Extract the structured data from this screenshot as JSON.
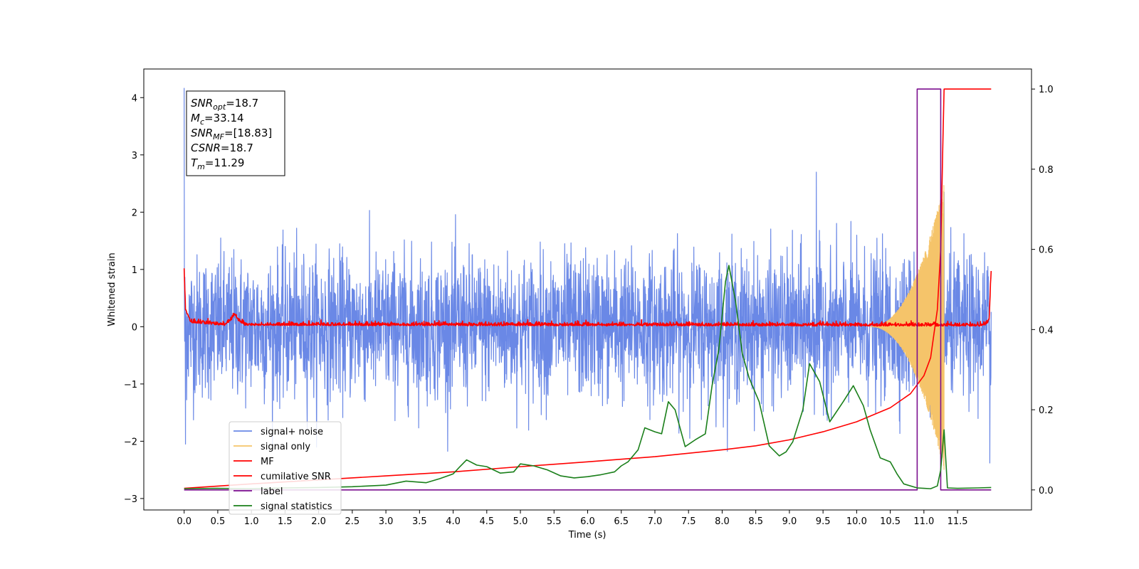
{
  "chart_data": {
    "type": "line",
    "xlabel": "Time (s)",
    "ylabel": "Whitened strain",
    "xlim": [
      -0.6,
      12.6
    ],
    "ylim": [
      -3.2,
      4.5
    ],
    "y2lim": [
      -0.05,
      1.05
    ],
    "x_ticks": [
      0.0,
      0.5,
      1.0,
      1.5,
      2.0,
      2.5,
      3.0,
      3.5,
      4.0,
      4.5,
      5.0,
      5.5,
      6.0,
      6.5,
      7.0,
      7.5,
      8.0,
      8.5,
      9.0,
      9.5,
      10.0,
      10.5,
      11.0,
      11.5
    ],
    "x_tick_labels": [
      "0.0",
      "0.5",
      "1.0",
      "1.5",
      "2.0",
      "2.5",
      "3.0",
      "3.5",
      "4.0",
      "4.5",
      "5.0",
      "5.5",
      "6.0",
      "6.5",
      "7.0",
      "7.5",
      "8.0",
      "8.5",
      "9.0",
      "9.5",
      "10.0",
      "10.5",
      "11.0",
      "11.5"
    ],
    "y_ticks": [
      -3,
      -2,
      -1,
      0,
      1,
      2,
      3,
      4
    ],
    "y_tick_labels": [
      "−3",
      "−2",
      "−1",
      "0",
      "1",
      "2",
      "3",
      "4"
    ],
    "y2_ticks": [
      0.0,
      0.2,
      0.4,
      0.6,
      0.8,
      1.0
    ],
    "y2_tick_labels": [
      "0.0",
      "0.2",
      "0.4",
      "0.6",
      "0.8",
      "1.0"
    ],
    "legend_position": "lower-left",
    "grid": false,
    "series": [
      {
        "name": "signal+ noise",
        "axis": "left",
        "color": "#6a88e6",
        "kind": "noise",
        "x_range": [
          0.0,
          12.0
        ],
        "envelope": 1.5,
        "peak_extremes": [
          {
            "x": 0.0,
            "y": 4.17
          },
          {
            "x": 9.4,
            "y": 2.7
          },
          {
            "x": 11.3,
            "y": 2.35
          },
          {
            "x": 0.02,
            "y": -2.05
          },
          {
            "x": 11.98,
            "y": -2.38
          }
        ]
      },
      {
        "name": "signal only",
        "axis": "left",
        "color": "#f5c46a",
        "kind": "chirp",
        "x_range": [
          10.2,
          11.3
        ],
        "peak_amplitude": 2.5
      },
      {
        "name": "MF",
        "axis": "left",
        "color": "#ff0000",
        "kind": "mf",
        "points": [
          [
            0.0,
            1.0
          ],
          [
            0.02,
            0.3
          ],
          [
            0.1,
            0.08
          ],
          [
            0.6,
            0.03
          ],
          [
            0.7,
            0.12
          ],
          [
            0.75,
            0.22
          ],
          [
            0.8,
            0.12
          ],
          [
            0.9,
            0.03
          ],
          [
            11.9,
            0.02
          ],
          [
            11.97,
            0.1
          ],
          [
            12.0,
            0.97
          ]
        ]
      },
      {
        "name": "cumilative SNR",
        "axis": "right",
        "color": "#ff0000",
        "kind": "cumulative",
        "points": [
          [
            0.0,
            0.004
          ],
          [
            1.0,
            0.015
          ],
          [
            2.0,
            0.025
          ],
          [
            3.0,
            0.035
          ],
          [
            4.0,
            0.045
          ],
          [
            5.0,
            0.058
          ],
          [
            6.0,
            0.07
          ],
          [
            7.0,
            0.083
          ],
          [
            8.0,
            0.1
          ],
          [
            8.5,
            0.11
          ],
          [
            9.0,
            0.125
          ],
          [
            9.5,
            0.145
          ],
          [
            10.0,
            0.17
          ],
          [
            10.5,
            0.205
          ],
          [
            10.8,
            0.24
          ],
          [
            11.0,
            0.285
          ],
          [
            11.1,
            0.33
          ],
          [
            11.2,
            0.45
          ],
          [
            11.25,
            0.6
          ],
          [
            11.28,
            0.85
          ],
          [
            11.3,
            1.0
          ],
          [
            12.0,
            1.0
          ]
        ]
      },
      {
        "name": "label",
        "axis": "right",
        "color": "#7b0f8f",
        "kind": "step",
        "points": [
          [
            0.0,
            0.0
          ],
          [
            10.9,
            0.0
          ],
          [
            10.9,
            1.0
          ],
          [
            11.25,
            1.0
          ],
          [
            11.25,
            0.0
          ],
          [
            12.0,
            0.0
          ]
        ]
      },
      {
        "name": "signal statistics",
        "axis": "right",
        "color": "#1a7f1a",
        "kind": "line",
        "points": [
          [
            0.0,
            0.003
          ],
          [
            0.5,
            0.004
          ],
          [
            1.0,
            0.003
          ],
          [
            1.5,
            0.005
          ],
          [
            2.0,
            0.006
          ],
          [
            2.5,
            0.008
          ],
          [
            3.0,
            0.012
          ],
          [
            3.3,
            0.022
          ],
          [
            3.6,
            0.018
          ],
          [
            3.8,
            0.028
          ],
          [
            4.0,
            0.04
          ],
          [
            4.1,
            0.058
          ],
          [
            4.2,
            0.075
          ],
          [
            4.35,
            0.062
          ],
          [
            4.5,
            0.058
          ],
          [
            4.7,
            0.042
          ],
          [
            4.9,
            0.045
          ],
          [
            5.0,
            0.065
          ],
          [
            5.2,
            0.06
          ],
          [
            5.4,
            0.05
          ],
          [
            5.6,
            0.035
          ],
          [
            5.8,
            0.03
          ],
          [
            6.0,
            0.033
          ],
          [
            6.2,
            0.038
          ],
          [
            6.4,
            0.045
          ],
          [
            6.5,
            0.06
          ],
          [
            6.6,
            0.07
          ],
          [
            6.75,
            0.1
          ],
          [
            6.85,
            0.155
          ],
          [
            7.0,
            0.145
          ],
          [
            7.1,
            0.14
          ],
          [
            7.2,
            0.22
          ],
          [
            7.3,
            0.2
          ],
          [
            7.45,
            0.108
          ],
          [
            7.6,
            0.125
          ],
          [
            7.75,
            0.14
          ],
          [
            7.85,
            0.26
          ],
          [
            7.95,
            0.35
          ],
          [
            8.05,
            0.52
          ],
          [
            8.1,
            0.56
          ],
          [
            8.2,
            0.47
          ],
          [
            8.3,
            0.34
          ],
          [
            8.4,
            0.28
          ],
          [
            8.55,
            0.22
          ],
          [
            8.7,
            0.11
          ],
          [
            8.85,
            0.085
          ],
          [
            8.95,
            0.095
          ],
          [
            9.05,
            0.12
          ],
          [
            9.2,
            0.2
          ],
          [
            9.3,
            0.315
          ],
          [
            9.45,
            0.27
          ],
          [
            9.6,
            0.17
          ],
          [
            9.8,
            0.22
          ],
          [
            9.95,
            0.26
          ],
          [
            10.1,
            0.21
          ],
          [
            10.2,
            0.15
          ],
          [
            10.35,
            0.08
          ],
          [
            10.5,
            0.07
          ],
          [
            10.6,
            0.04
          ],
          [
            10.7,
            0.015
          ],
          [
            10.9,
            0.005
          ],
          [
            11.0,
            0.004
          ],
          [
            11.1,
            0.003
          ],
          [
            11.2,
            0.01
          ],
          [
            11.25,
            0.05
          ],
          [
            11.3,
            0.15
          ],
          [
            11.35,
            0.005
          ],
          [
            11.5,
            0.004
          ],
          [
            11.8,
            0.005
          ],
          [
            12.0,
            0.006
          ]
        ]
      }
    ],
    "annotation": [
      {
        "base": "SNR",
        "sub": "opt",
        "value": "=18.7"
      },
      {
        "base": "M",
        "sub": "c",
        "value": "=33.14"
      },
      {
        "base": "SNR",
        "sub": "MF",
        "value": "=[18.83]"
      },
      {
        "base": "CSNR",
        "sub": "",
        "value": "=18.7"
      },
      {
        "base": "T",
        "sub": "m",
        "value": "=11.29"
      }
    ]
  }
}
